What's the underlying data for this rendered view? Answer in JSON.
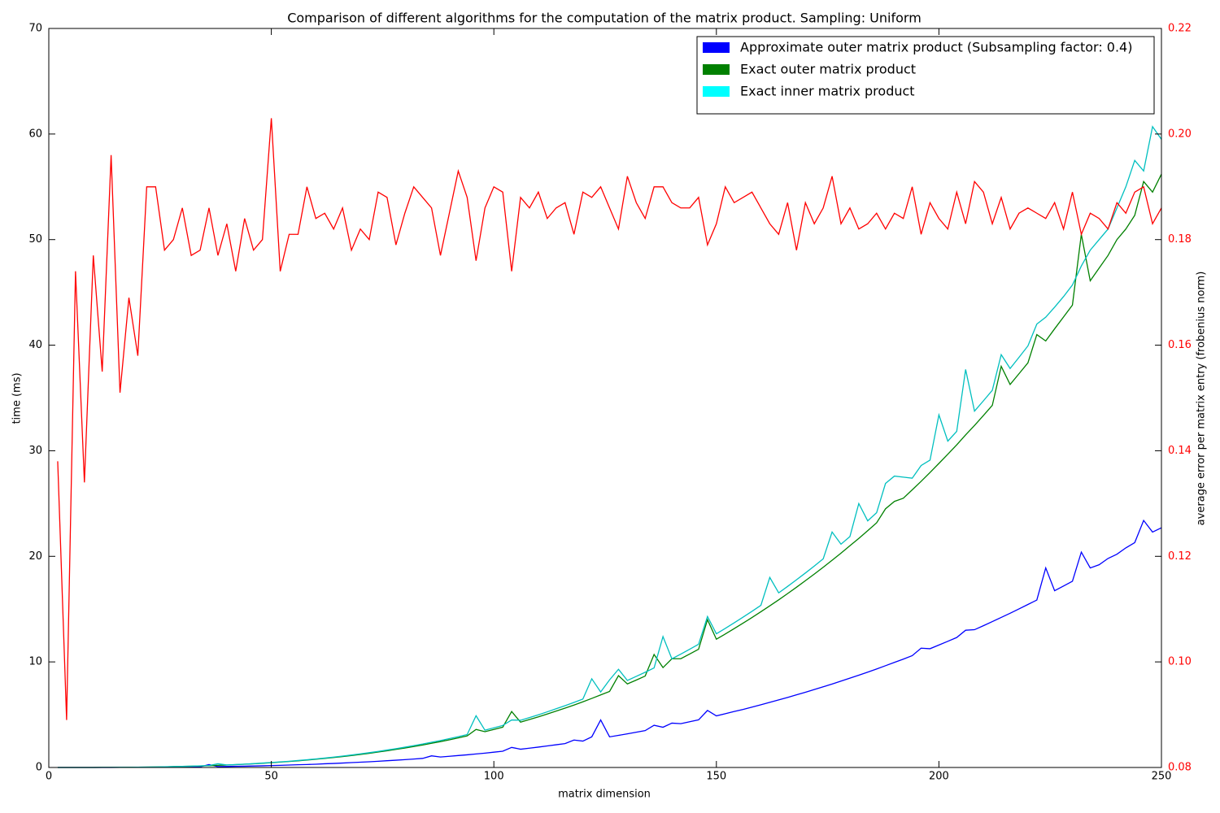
{
  "chart_data": {
    "type": "line",
    "title": "Comparison of different algorithms for the computation of the matrix product. Sampling: Uniform",
    "x_label": "matrix dimension",
    "y_label": "time (ms)",
    "y2_label": "average error per matrix entry (frobenius norm)",
    "xlim": [
      0,
      250
    ],
    "xticks": [
      0,
      50,
      100,
      150,
      200,
      250
    ],
    "ylim": [
      0,
      70
    ],
    "yticks": [
      0,
      10,
      20,
      30,
      40,
      50,
      60,
      70
    ],
    "y2lim": [
      0.08,
      0.22
    ],
    "y2ticks": [
      0.08,
      {
        "value": 0.1,
        "label": "0.10"
      },
      0.12,
      0.14,
      0.16,
      0.18,
      {
        "value": 0.2,
        "label": "0.20"
      },
      0.22
    ],
    "legend": "upper right",
    "x": [
      2,
      4,
      6,
      8,
      10,
      12,
      14,
      16,
      18,
      20,
      22,
      24,
      26,
      28,
      30,
      32,
      34,
      36,
      38,
      40,
      42,
      44,
      46,
      48,
      50,
      52,
      54,
      56,
      58,
      60,
      62,
      64,
      66,
      68,
      70,
      72,
      74,
      76,
      78,
      80,
      82,
      84,
      86,
      88,
      90,
      92,
      94,
      96,
      98,
      100,
      102,
      104,
      106,
      108,
      110,
      112,
      114,
      116,
      118,
      120,
      122,
      124,
      126,
      128,
      130,
      132,
      134,
      136,
      138,
      140,
      142,
      144,
      146,
      148,
      150,
      152,
      154,
      156,
      158,
      160,
      162,
      164,
      166,
      168,
      170,
      172,
      174,
      176,
      178,
      180,
      182,
      184,
      186,
      188,
      190,
      192,
      194,
      196,
      198,
      200,
      202,
      204,
      206,
      208,
      210,
      212,
      214,
      216,
      218,
      220,
      222,
      224,
      226,
      228,
      230,
      232,
      234,
      236,
      238,
      240,
      242,
      244,
      246,
      248,
      250
    ],
    "series": [
      {
        "name": "Approximate outer matrix product (Subsampling factor: 0.4)",
        "color": "#0000ff",
        "axis": "y",
        "values": [
          0,
          0,
          0,
          0,
          0,
          0,
          0,
          0.01,
          0.01,
          0.01,
          0.02,
          0.02,
          0.03,
          0.03,
          0.04,
          0.05,
          0.06,
          0.28,
          0.08,
          0.09,
          0.11,
          0.12,
          0.14,
          0.16,
          0.18,
          0.2,
          0.23,
          0.26,
          0.28,
          0.31,
          0.35,
          0.38,
          0.42,
          0.46,
          0.5,
          0.54,
          0.59,
          0.64,
          0.69,
          0.74,
          0.8,
          0.86,
          1.1,
          0.99,
          1.06,
          1.13,
          1.2,
          1.28,
          1.36,
          1.45,
          1.54,
          1.9,
          1.73,
          1.83,
          1.93,
          2.04,
          2.15,
          2.26,
          2.6,
          2.5,
          2.9,
          4.5,
          2.9,
          3.04,
          3.19,
          3.34,
          3.49,
          4.0,
          3.81,
          4.2,
          4.15,
          4.33,
          4.51,
          5.4,
          4.89,
          5.09,
          5.3,
          5.5,
          5.72,
          5.94,
          6.17,
          6.4,
          6.63,
          6.88,
          7.12,
          7.38,
          7.64,
          7.9,
          8.18,
          8.46,
          8.74,
          9.03,
          9.33,
          9.64,
          9.95,
          10.26,
          10.59,
          11.3,
          11.25,
          11.6,
          11.95,
          12.31,
          13.0,
          13.05,
          13.43,
          13.82,
          14.21,
          14.61,
          15.02,
          15.44,
          15.86,
          18.9,
          16.74,
          17.19,
          17.64,
          20.4,
          18.9,
          19.2,
          19.8,
          20.2,
          20.8,
          21.3,
          23.4,
          22.3,
          22.7
        ]
      },
      {
        "name": "Exact outer matrix product",
        "color": "#008000",
        "axis": "y",
        "values": [
          0,
          0,
          0,
          0,
          0,
          0.01,
          0.01,
          0.01,
          0.02,
          0.03,
          0.04,
          0.05,
          0.06,
          0.08,
          0.1,
          0.12,
          0.14,
          0.17,
          0.2,
          0.23,
          0.27,
          0.31,
          0.35,
          0.4,
          0.45,
          0.51,
          0.57,
          0.63,
          0.7,
          0.78,
          0.86,
          0.94,
          1.03,
          1.13,
          1.23,
          1.34,
          1.46,
          1.58,
          1.71,
          1.84,
          1.98,
          2.13,
          2.29,
          2.45,
          2.62,
          2.8,
          2.99,
          3.6,
          3.39,
          3.6,
          3.82,
          5.3,
          4.29,
          4.54,
          4.79,
          5.06,
          5.34,
          5.62,
          5.91,
          6.22,
          6.54,
          6.87,
          7.2,
          8.7,
          7.91,
          8.28,
          8.66,
          10.7,
          9.46,
          10.3,
          10.3,
          10.75,
          11.2,
          14.0,
          12.15,
          12.64,
          13.15,
          13.67,
          14.2,
          14.75,
          15.31,
          15.88,
          16.47,
          17.07,
          17.69,
          18.32,
          18.96,
          19.63,
          20.3,
          21.0,
          21.7,
          22.43,
          23.17,
          24.5,
          25.2,
          25.5,
          26.3,
          27.1,
          27.94,
          28.8,
          29.67,
          30.56,
          31.5,
          32.4,
          33.34,
          34.3,
          38.0,
          36.28,
          37.3,
          38.33,
          41.0,
          40.4,
          41.55,
          42.67,
          43.8,
          50.5,
          46.1,
          47.3,
          48.5,
          50.0,
          51.0,
          52.3,
          55.5,
          54.5,
          56.2
        ]
      },
      {
        "name": "Exact inner matrix product",
        "color": "#00bfbf",
        "legend_color": "#00ffff",
        "axis": "y",
        "values": [
          0,
          0,
          0,
          0,
          0,
          0.01,
          0.01,
          0.02,
          0.02,
          0.03,
          0.04,
          0.05,
          0.07,
          0.08,
          0.1,
          0.12,
          0.15,
          0.18,
          0.35,
          0.24,
          0.28,
          0.32,
          0.36,
          0.42,
          0.47,
          0.53,
          0.59,
          0.66,
          0.73,
          0.81,
          0.89,
          0.98,
          1.08,
          1.18,
          1.29,
          1.4,
          1.52,
          1.65,
          1.78,
          1.92,
          2.07,
          2.22,
          2.39,
          2.55,
          2.73,
          2.92,
          3.12,
          4.9,
          3.53,
          3.75,
          3.98,
          4.5,
          4.47,
          4.73,
          4.99,
          5.27,
          5.56,
          5.85,
          6.16,
          6.48,
          8.4,
          7.15,
          8.3,
          9.3,
          8.24,
          8.63,
          9.02,
          9.43,
          12.4,
          10.29,
          10.74,
          11.2,
          11.67,
          14.3,
          12.66,
          13.17,
          13.7,
          14.24,
          14.79,
          15.36,
          18.0,
          16.54,
          17.15,
          17.78,
          18.42,
          19.08,
          19.76,
          22.3,
          21.15,
          21.87,
          25.0,
          23.36,
          24.13,
          26.9,
          27.6,
          27.5,
          27.4,
          28.6,
          29.11,
          33.4,
          30.91,
          31.84,
          37.7,
          33.75,
          34.73,
          35.73,
          39.1,
          37.79,
          38.85,
          39.93,
          42.0,
          42.65,
          43.6,
          44.6,
          45.7,
          47.5,
          49.0,
          50.0,
          51.0,
          53.0,
          55.0,
          57.5,
          56.5,
          60.7,
          59.5
        ]
      },
      {
        "color": "#ff0000",
        "axis": "y2",
        "values": [
          0.138,
          0.089,
          0.174,
          0.134,
          0.177,
          0.155,
          0.196,
          0.151,
          0.169,
          0.158,
          0.19,
          0.19,
          0.178,
          0.18,
          0.186,
          0.177,
          0.178,
          0.186,
          0.177,
          0.183,
          0.174,
          0.184,
          0.178,
          0.18,
          0.203,
          0.174,
          0.181,
          0.181,
          0.19,
          0.184,
          0.185,
          0.182,
          0.186,
          0.178,
          0.182,
          0.18,
          0.189,
          0.188,
          0.179,
          0.185,
          0.19,
          0.188,
          0.186,
          0.177,
          0.185,
          0.193,
          0.188,
          0.176,
          0.186,
          0.19,
          0.189,
          0.174,
          0.188,
          0.186,
          0.189,
          0.184,
          0.186,
          0.187,
          0.181,
          0.189,
          0.188,
          0.19,
          0.186,
          0.182,
          0.192,
          0.187,
          0.184,
          0.19,
          0.19,
          0.187,
          0.186,
          0.186,
          0.188,
          0.179,
          0.183,
          0.19,
          0.187,
          0.188,
          0.189,
          0.186,
          0.183,
          0.181,
          0.187,
          0.178,
          0.187,
          0.183,
          0.186,
          0.192,
          0.183,
          0.186,
          0.182,
          0.183,
          0.185,
          0.182,
          0.185,
          0.184,
          0.19,
          0.181,
          0.187,
          0.184,
          0.182,
          0.189,
          0.183,
          0.191,
          0.189,
          0.183,
          0.188,
          0.182,
          0.185,
          0.186,
          0.185,
          0.184,
          0.187,
          0.182,
          0.189,
          0.181,
          0.185,
          0.184,
          0.182,
          0.187,
          0.185,
          0.189,
          0.19,
          0.183,
          0.186
        ]
      }
    ]
  }
}
